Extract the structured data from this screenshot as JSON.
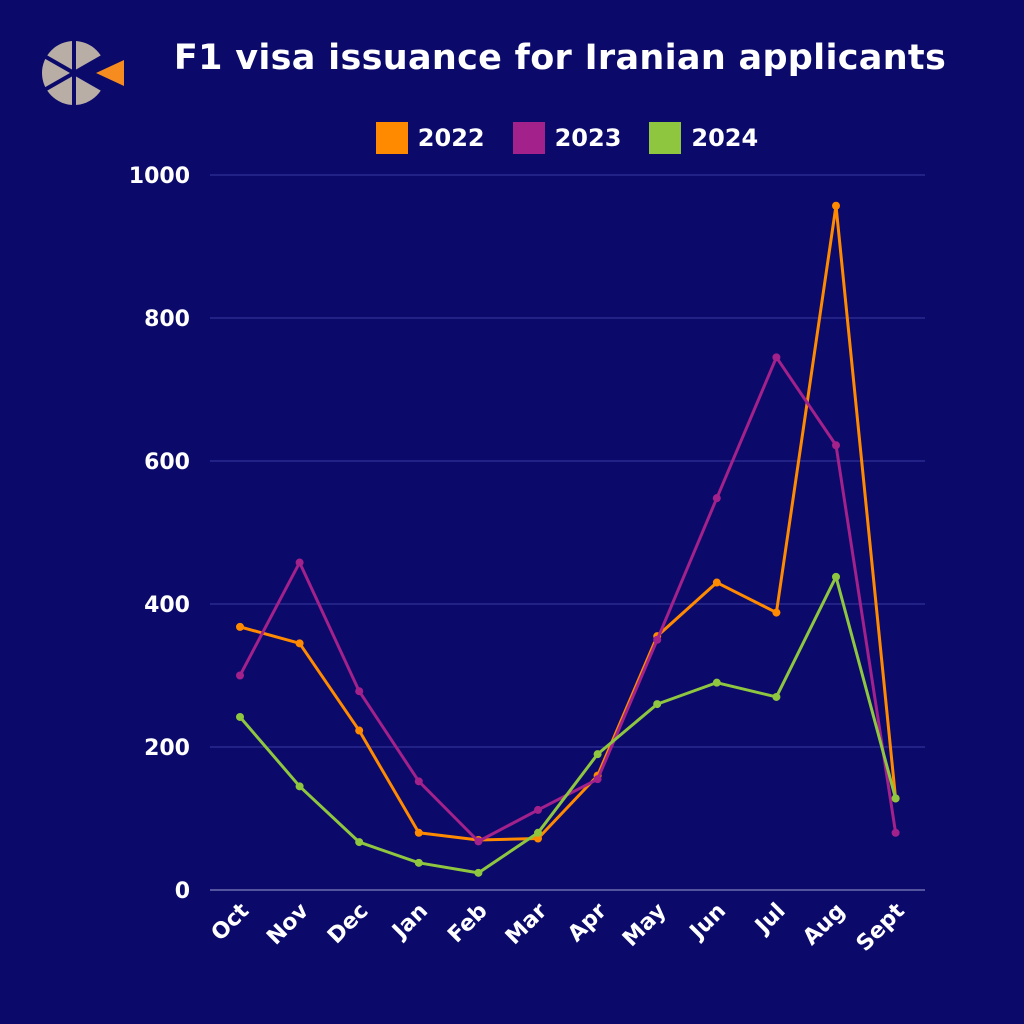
{
  "chart_data": {
    "type": "line",
    "title": "F1 visa issuance for Iranian applicants",
    "xlabel": "",
    "ylabel": "",
    "ylim": [
      0,
      1000
    ],
    "yticks": [
      0,
      200,
      400,
      600,
      800,
      1000
    ],
    "categories": [
      "Oct",
      "Nov",
      "Dec",
      "Jan",
      "Feb",
      "Mar",
      "Apr",
      "May",
      "Jun",
      "Jul",
      "Aug",
      "Sept"
    ],
    "series": [
      {
        "name": "2022",
        "color": "#ff8a00",
        "values": [
          368,
          345,
          223,
          80,
          70,
          72,
          160,
          355,
          430,
          388,
          957,
          128
        ]
      },
      {
        "name": "2023",
        "color": "#a3218a",
        "values": [
          300,
          458,
          278,
          152,
          68,
          112,
          155,
          350,
          548,
          745,
          622,
          80
        ]
      },
      {
        "name": "2024",
        "color": "#8fc640",
        "values": [
          242,
          145,
          67,
          38,
          24,
          80,
          190,
          260,
          290,
          270,
          438,
          128
        ]
      }
    ],
    "grid": true,
    "legend_position": "top-center"
  },
  "logo": {
    "colors": [
      "#b8aea6",
      "#f68b1f"
    ]
  }
}
